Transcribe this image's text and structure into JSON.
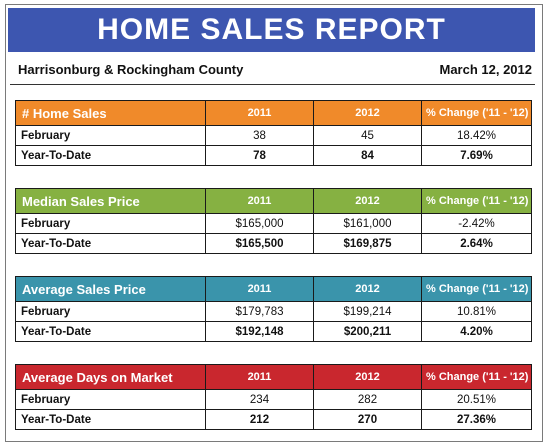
{
  "header": {
    "title": "HOME SALES REPORT",
    "region": "Harrisonburg & Rockingham County",
    "date": "March 12, 2012"
  },
  "colors": {
    "banner": "#3d56b0",
    "home_sales": "#f08a2a",
    "median_price": "#86b142",
    "average_price": "#3a94ab",
    "days_on_market": "#c9272e"
  },
  "sections": [
    {
      "title": "# Home Sales",
      "col1": "2011",
      "col2": "2012",
      "col3": "% Change ('11 - '12)",
      "rows": [
        {
          "label": "February",
          "v2011": "38",
          "v2012": "45",
          "change": "18.42%"
        },
        {
          "label": "Year-To-Date",
          "v2011": "78",
          "v2012": "84",
          "change": "7.69%"
        }
      ]
    },
    {
      "title": "Median Sales Price",
      "col1": "2011",
      "col2": "2012",
      "col3": "% Change ('11 - '12)",
      "rows": [
        {
          "label": "February",
          "v2011": "$165,000",
          "v2012": "$161,000",
          "change": "-2.42%"
        },
        {
          "label": "Year-To-Date",
          "v2011": "$165,500",
          "v2012": "$169,875",
          "change": "2.64%"
        }
      ]
    },
    {
      "title": "Average Sales Price",
      "col1": "2011",
      "col2": "2012",
      "col3": "% Change ('11 - '12)",
      "rows": [
        {
          "label": "February",
          "v2011": "$179,783",
          "v2012": "$199,214",
          "change": "10.81%"
        },
        {
          "label": "Year-To-Date",
          "v2011": "$192,148",
          "v2012": "$200,211",
          "change": "4.20%"
        }
      ]
    },
    {
      "title": "Average Days on Market",
      "col1": "2011",
      "col2": "2012",
      "col3": "% Change ('11 - '12)",
      "rows": [
        {
          "label": "February",
          "v2011": "234",
          "v2012": "282",
          "change": "20.51%"
        },
        {
          "label": "Year-To-Date",
          "v2011": "212",
          "v2012": "270",
          "change": "27.36%"
        }
      ]
    }
  ]
}
